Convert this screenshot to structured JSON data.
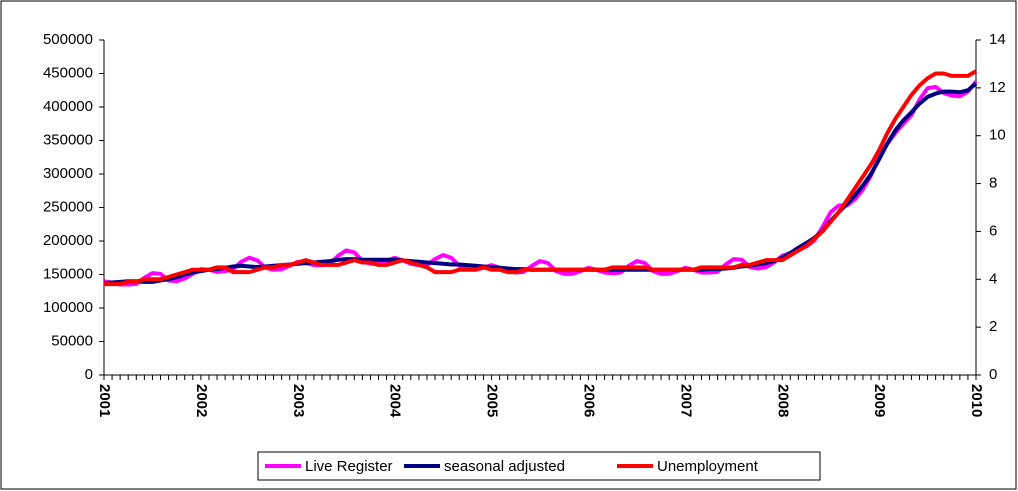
{
  "chart_data": {
    "type": "line",
    "categories": [
      "2001",
      null,
      null,
      null,
      null,
      null,
      null,
      null,
      null,
      null,
      null,
      null,
      "2002",
      null,
      null,
      null,
      null,
      null,
      null,
      null,
      null,
      null,
      null,
      null,
      "2003",
      null,
      null,
      null,
      null,
      null,
      null,
      null,
      null,
      null,
      null,
      null,
      "2004",
      null,
      null,
      null,
      null,
      null,
      null,
      null,
      null,
      null,
      null,
      null,
      "2005",
      null,
      null,
      null,
      null,
      null,
      null,
      null,
      null,
      null,
      null,
      null,
      "2006",
      null,
      null,
      null,
      null,
      null,
      null,
      null,
      null,
      null,
      null,
      null,
      "2007",
      null,
      null,
      null,
      null,
      null,
      null,
      null,
      null,
      null,
      null,
      null,
      "2008",
      null,
      null,
      null,
      null,
      null,
      null,
      null,
      null,
      null,
      null,
      null,
      "2009",
      null,
      null,
      null,
      null,
      null,
      null,
      null,
      null,
      null,
      null,
      null,
      "2010"
    ],
    "series": [
      {
        "name": "Live Register",
        "color": "#ff00ff",
        "values": [
          140000,
          138000,
          135000,
          135000,
          136000,
          145000,
          152000,
          151000,
          141000,
          140000,
          144000,
          151000,
          158000,
          157000,
          154000,
          155000,
          158000,
          169000,
          175000,
          171000,
          160000,
          157000,
          158000,
          163000,
          169000,
          167000,
          164000,
          164000,
          166000,
          178000,
          186000,
          183000,
          170000,
          166000,
          166000,
          170000,
          175000,
          171000,
          166000,
          164000,
          164000,
          173000,
          179000,
          175000,
          163000,
          158000,
          157000,
          160000,
          164000,
          160000,
          155000,
          153000,
          154000,
          163000,
          170000,
          167000,
          155000,
          151000,
          151000,
          155000,
          160000,
          157000,
          153000,
          152000,
          153000,
          163000,
          170000,
          167000,
          155000,
          151000,
          151000,
          155000,
          160000,
          157000,
          153000,
          153000,
          154000,
          165000,
          173000,
          172000,
          161000,
          159000,
          161000,
          168000,
          178000,
          182000,
          186000,
          192000,
          201000,
          221000,
          243000,
          253000,
          253000,
          262000,
          277000,
          298000,
          325000,
          345000,
          361000,
          375000,
          388000,
          411000,
          428000,
          430000,
          421000,
          417000,
          416000,
          423000,
          438000
        ]
      },
      {
        "name": "seasonal adjusted",
        "color": "#000080",
        "values": [
          137000,
          138000,
          139000,
          140000,
          140000,
          139000,
          139000,
          141000,
          143000,
          146000,
          150000,
          153000,
          155000,
          157000,
          158000,
          160000,
          162000,
          163000,
          162000,
          161000,
          162000,
          163000,
          164000,
          165000,
          166000,
          167000,
          168000,
          169000,
          170000,
          172000,
          173000,
          173000,
          172000,
          172000,
          172000,
          172000,
          172000,
          171000,
          170000,
          169000,
          168000,
          167000,
          166000,
          165000,
          165000,
          164000,
          163000,
          162000,
          161000,
          160000,
          159000,
          158000,
          158000,
          157000,
          157000,
          157000,
          157000,
          157000,
          157000,
          157000,
          157000,
          157000,
          157000,
          157000,
          157000,
          157000,
          157000,
          157000,
          157000,
          157000,
          157000,
          157000,
          157000,
          157000,
          157000,
          158000,
          158000,
          159000,
          160000,
          162000,
          163000,
          165000,
          167000,
          170000,
          175000,
          182000,
          190000,
          197000,
          205000,
          215000,
          230000,
          243000,
          255000,
          268000,
          283000,
          300000,
          322000,
          345000,
          365000,
          380000,
          392000,
          405000,
          415000,
          420000,
          423000,
          423000,
          422000,
          425000,
          435000
        ]
      },
      {
        "name": "Unemployment",
        "color": "#ff0000",
        "axis": "y2",
        "values": [
          3.8,
          3.8,
          3.8,
          3.9,
          3.9,
          4.0,
          4.0,
          4.0,
          4.1,
          4.2,
          4.3,
          4.4,
          4.4,
          4.4,
          4.5,
          4.5,
          4.3,
          4.3,
          4.3,
          4.4,
          4.5,
          4.5,
          4.6,
          4.6,
          4.7,
          4.8,
          4.7,
          4.6,
          4.6,
          4.6,
          4.7,
          4.8,
          4.7,
          4.7,
          4.6,
          4.6,
          4.7,
          4.8,
          4.7,
          4.6,
          4.5,
          4.3,
          4.3,
          4.3,
          4.4,
          4.4,
          4.4,
          4.5,
          4.4,
          4.4,
          4.3,
          4.3,
          4.4,
          4.4,
          4.4,
          4.4,
          4.4,
          4.4,
          4.4,
          4.4,
          4.4,
          4.4,
          4.4,
          4.5,
          4.5,
          4.5,
          4.5,
          4.5,
          4.4,
          4.4,
          4.4,
          4.4,
          4.4,
          4.4,
          4.5,
          4.5,
          4.5,
          4.5,
          4.5,
          4.6,
          4.6,
          4.7,
          4.8,
          4.8,
          4.8,
          5.0,
          5.2,
          5.4,
          5.7,
          6.0,
          6.4,
          6.8,
          7.3,
          7.8,
          8.3,
          8.8,
          9.4,
          10.1,
          10.7,
          11.2,
          11.7,
          12.1,
          12.4,
          12.6,
          12.6,
          12.5,
          12.5,
          12.5,
          12.7
        ]
      }
    ],
    "ylim": [
      0,
      500000
    ],
    "yticks": [
      0,
      50000,
      100000,
      150000,
      200000,
      250000,
      300000,
      350000,
      400000,
      450000,
      500000
    ],
    "y2lim": [
      0,
      14
    ],
    "y2ticks": [
      0,
      2,
      4,
      6,
      8,
      10,
      12,
      14
    ],
    "grid": false,
    "legend": "bottom"
  }
}
